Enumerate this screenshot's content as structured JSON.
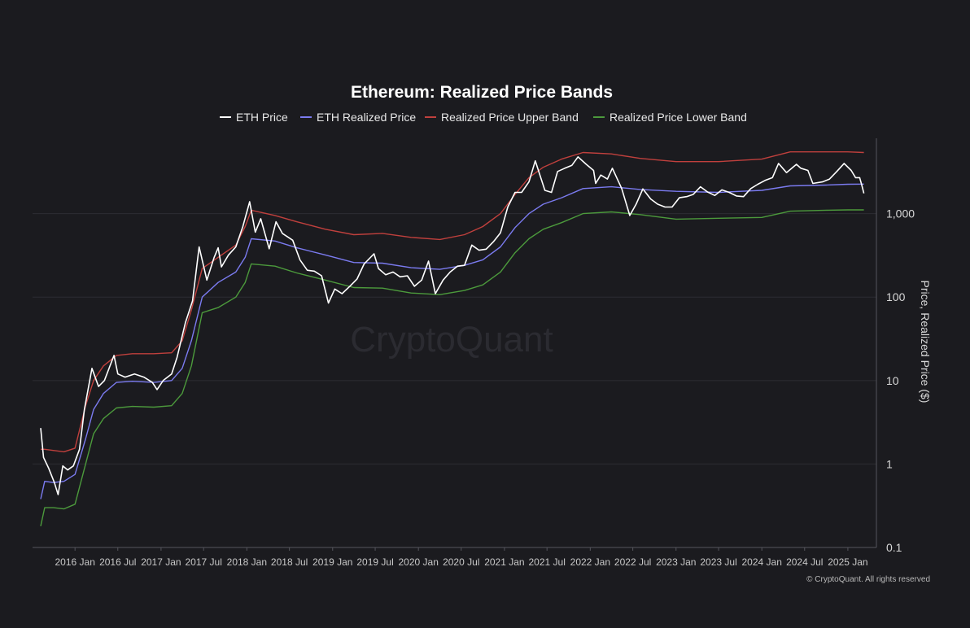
{
  "chart_data": {
    "type": "line",
    "title": "Ethereum: Realized Price Bands",
    "ylabel": "Price, Realized Price ($)",
    "yscale": "log",
    "ylim": [
      0.1,
      8000
    ],
    "xlim": [
      "2015-08-01",
      "2025-03-15"
    ],
    "y_ticks": [
      {
        "value": 0.1,
        "label": "0.1"
      },
      {
        "value": 1,
        "label": "1"
      },
      {
        "value": 10,
        "label": "10"
      },
      {
        "value": 100,
        "label": "100"
      },
      {
        "value": 1000,
        "label": "1,000"
      }
    ],
    "x_ticks": [
      {
        "date": "2016-01-01",
        "label": "2016 Jan"
      },
      {
        "date": "2016-07-01",
        "label": "2016 Jul"
      },
      {
        "date": "2017-01-01",
        "label": "2017 Jan"
      },
      {
        "date": "2017-07-01",
        "label": "2017 Jul"
      },
      {
        "date": "2018-01-01",
        "label": "2018 Jan"
      },
      {
        "date": "2018-07-01",
        "label": "2018 Jul"
      },
      {
        "date": "2019-01-01",
        "label": "2019 Jan"
      },
      {
        "date": "2019-07-01",
        "label": "2019 Jul"
      },
      {
        "date": "2020-01-01",
        "label": "2020 Jan"
      },
      {
        "date": "2020-07-01",
        "label": "2020 Jul"
      },
      {
        "date": "2021-01-01",
        "label": "2021 Jan"
      },
      {
        "date": "2021-07-01",
        "label": "2021 Jul"
      },
      {
        "date": "2022-01-01",
        "label": "2022 Jan"
      },
      {
        "date": "2022-07-01",
        "label": "2022 Jul"
      },
      {
        "date": "2023-01-01",
        "label": "2023 Jan"
      },
      {
        "date": "2023-07-01",
        "label": "2023 Jul"
      },
      {
        "date": "2024-01-01",
        "label": "2024 Jan"
      },
      {
        "date": "2024-07-01",
        "label": "2024 Jul"
      },
      {
        "date": "2025-01-01",
        "label": "2025 Jan"
      }
    ],
    "legend_position": "top-center",
    "grid": "horizontal",
    "series": [
      {
        "name": "ETH Price",
        "color": "#ffffff",
        "points": [
          [
            "2015-08-08",
            2.7
          ],
          [
            "2015-08-20",
            1.2
          ],
          [
            "2015-09-10",
            0.9
          ],
          [
            "2015-10-05",
            0.6
          ],
          [
            "2015-10-21",
            0.43
          ],
          [
            "2015-11-10",
            0.95
          ],
          [
            "2015-12-01",
            0.85
          ],
          [
            "2015-12-25",
            0.95
          ],
          [
            "2016-01-20",
            1.5
          ],
          [
            "2016-02-10",
            4.5
          ],
          [
            "2016-03-13",
            14
          ],
          [
            "2016-04-10",
            8.5
          ],
          [
            "2016-05-05",
            10
          ],
          [
            "2016-06-15",
            20
          ],
          [
            "2016-07-01",
            12
          ],
          [
            "2016-08-01",
            11
          ],
          [
            "2016-09-10",
            12
          ],
          [
            "2016-10-20",
            11
          ],
          [
            "2016-11-25",
            9.5
          ],
          [
            "2016-12-15",
            7.8
          ],
          [
            "2017-01-10",
            10
          ],
          [
            "2017-02-15",
            12
          ],
          [
            "2017-03-10",
            19
          ],
          [
            "2017-04-15",
            50
          ],
          [
            "2017-05-15",
            90
          ],
          [
            "2017-06-12",
            400
          ],
          [
            "2017-07-15",
            160
          ],
          [
            "2017-08-15",
            300
          ],
          [
            "2017-09-01",
            390
          ],
          [
            "2017-09-15",
            230
          ],
          [
            "2017-10-15",
            320
          ],
          [
            "2017-11-15",
            400
          ],
          [
            "2017-12-15",
            700
          ],
          [
            "2018-01-13",
            1390
          ],
          [
            "2018-02-06",
            600
          ],
          [
            "2018-03-01",
            870
          ],
          [
            "2018-04-06",
            380
          ],
          [
            "2018-05-05",
            800
          ],
          [
            "2018-06-01",
            580
          ],
          [
            "2018-07-15",
            480
          ],
          [
            "2018-08-15",
            280
          ],
          [
            "2018-09-15",
            210
          ],
          [
            "2018-10-15",
            205
          ],
          [
            "2018-11-15",
            180
          ],
          [
            "2018-12-14",
            85
          ],
          [
            "2019-01-10",
            125
          ],
          [
            "2019-02-10",
            110
          ],
          [
            "2019-03-15",
            135
          ],
          [
            "2019-04-15",
            165
          ],
          [
            "2019-05-15",
            250
          ],
          [
            "2019-06-26",
            330
          ],
          [
            "2019-07-15",
            220
          ],
          [
            "2019-08-15",
            185
          ],
          [
            "2019-09-15",
            200
          ],
          [
            "2019-10-15",
            175
          ],
          [
            "2019-11-15",
            180
          ],
          [
            "2019-12-15",
            135
          ],
          [
            "2020-01-15",
            160
          ],
          [
            "2020-02-13",
            270
          ],
          [
            "2020-03-13",
            110
          ],
          [
            "2020-04-15",
            160
          ],
          [
            "2020-05-15",
            200
          ],
          [
            "2020-06-15",
            235
          ],
          [
            "2020-07-15",
            240
          ],
          [
            "2020-08-15",
            420
          ],
          [
            "2020-09-15",
            365
          ],
          [
            "2020-10-15",
            375
          ],
          [
            "2020-11-15",
            460
          ],
          [
            "2020-12-15",
            590
          ],
          [
            "2021-01-15",
            1200
          ],
          [
            "2021-02-15",
            1800
          ],
          [
            "2021-03-15",
            1800
          ],
          [
            "2021-04-15",
            2400
          ],
          [
            "2021-05-12",
            4300
          ],
          [
            "2021-06-22",
            1900
          ],
          [
            "2021-07-20",
            1800
          ],
          [
            "2021-08-15",
            3200
          ],
          [
            "2021-09-15",
            3500
          ],
          [
            "2021-10-15",
            3800
          ],
          [
            "2021-11-10",
            4800
          ],
          [
            "2021-12-15",
            3900
          ],
          [
            "2022-01-15",
            3300
          ],
          [
            "2022-01-24",
            2300
          ],
          [
            "2022-02-15",
            2900
          ],
          [
            "2022-03-15",
            2600
          ],
          [
            "2022-04-05",
            3500
          ],
          [
            "2022-05-15",
            2000
          ],
          [
            "2022-06-18",
            950
          ],
          [
            "2022-07-15",
            1300
          ],
          [
            "2022-08-13",
            1980
          ],
          [
            "2022-09-15",
            1500
          ],
          [
            "2022-10-15",
            1300
          ],
          [
            "2022-11-15",
            1200
          ],
          [
            "2022-12-15",
            1200
          ],
          [
            "2023-01-15",
            1550
          ],
          [
            "2023-02-15",
            1600
          ],
          [
            "2023-03-15",
            1700
          ],
          [
            "2023-04-15",
            2100
          ],
          [
            "2023-05-15",
            1820
          ],
          [
            "2023-06-15",
            1650
          ],
          [
            "2023-07-15",
            1930
          ],
          [
            "2023-08-15",
            1800
          ],
          [
            "2023-09-15",
            1630
          ],
          [
            "2023-10-15",
            1600
          ],
          [
            "2023-11-15",
            2000
          ],
          [
            "2023-12-15",
            2250
          ],
          [
            "2024-01-15",
            2500
          ],
          [
            "2024-02-15",
            2700
          ],
          [
            "2024-03-12",
            4000
          ],
          [
            "2024-04-15",
            3100
          ],
          [
            "2024-05-27",
            3900
          ],
          [
            "2024-06-15",
            3500
          ],
          [
            "2024-07-15",
            3300
          ],
          [
            "2024-08-05",
            2300
          ],
          [
            "2024-09-15",
            2400
          ],
          [
            "2024-10-15",
            2600
          ],
          [
            "2024-11-15",
            3200
          ],
          [
            "2024-12-16",
            4000
          ],
          [
            "2025-01-15",
            3300
          ],
          [
            "2025-02-03",
            2700
          ],
          [
            "2025-02-20",
            2700
          ],
          [
            "2025-03-01",
            2200
          ],
          [
            "2025-03-10",
            1750
          ]
        ]
      },
      {
        "name": "ETH Realized Price",
        "color": "#7b7bf0",
        "points": [
          [
            "2015-08-08",
            0.38
          ],
          [
            "2015-08-25",
            0.62
          ],
          [
            "2015-10-01",
            0.6
          ],
          [
            "2015-11-15",
            0.62
          ],
          [
            "2016-01-01",
            0.75
          ],
          [
            "2016-02-15",
            2.0
          ],
          [
            "2016-03-20",
            4.5
          ],
          [
            "2016-05-01",
            7
          ],
          [
            "2016-06-25",
            9.5
          ],
          [
            "2016-09-01",
            9.8
          ],
          [
            "2016-12-01",
            9.5
          ],
          [
            "2017-02-15",
            10
          ],
          [
            "2017-04-01",
            14
          ],
          [
            "2017-05-10",
            30
          ],
          [
            "2017-06-25",
            100
          ],
          [
            "2017-09-01",
            150
          ],
          [
            "2017-11-15",
            200
          ],
          [
            "2017-12-25",
            300
          ],
          [
            "2018-01-20",
            500
          ],
          [
            "2018-05-01",
            470
          ],
          [
            "2018-08-01",
            390
          ],
          [
            "2018-12-01",
            320
          ],
          [
            "2019-04-01",
            260
          ],
          [
            "2019-08-01",
            255
          ],
          [
            "2019-12-01",
            225
          ],
          [
            "2020-04-01",
            215
          ],
          [
            "2020-07-15",
            240
          ],
          [
            "2020-10-01",
            280
          ],
          [
            "2020-12-15",
            400
          ],
          [
            "2021-02-15",
            680
          ],
          [
            "2021-04-15",
            1000
          ],
          [
            "2021-06-15",
            1300
          ],
          [
            "2021-09-01",
            1550
          ],
          [
            "2021-12-01",
            2000
          ],
          [
            "2022-04-01",
            2100
          ],
          [
            "2022-08-01",
            1950
          ],
          [
            "2023-01-01",
            1850
          ],
          [
            "2023-07-01",
            1800
          ],
          [
            "2024-01-01",
            1900
          ],
          [
            "2024-05-01",
            2150
          ],
          [
            "2024-10-01",
            2200
          ],
          [
            "2025-01-01",
            2250
          ],
          [
            "2025-03-10",
            2260
          ]
        ]
      },
      {
        "name": "Realized Price Upper Band",
        "color": "#c0403d",
        "points": [
          [
            "2015-08-08",
            1.5
          ],
          [
            "2015-08-25",
            1.5
          ],
          [
            "2015-11-15",
            1.4
          ],
          [
            "2016-01-01",
            1.55
          ],
          [
            "2016-02-15",
            5
          ],
          [
            "2016-03-20",
            10
          ],
          [
            "2016-05-01",
            15
          ],
          [
            "2016-06-25",
            20
          ],
          [
            "2016-09-01",
            21
          ],
          [
            "2016-12-01",
            21
          ],
          [
            "2017-02-15",
            21.5
          ],
          [
            "2017-04-01",
            30
          ],
          [
            "2017-05-10",
            70
          ],
          [
            "2017-06-25",
            220
          ],
          [
            "2017-09-01",
            300
          ],
          [
            "2017-11-15",
            420
          ],
          [
            "2017-12-25",
            700
          ],
          [
            "2018-01-20",
            1100
          ],
          [
            "2018-05-01",
            950
          ],
          [
            "2018-08-01",
            800
          ],
          [
            "2018-12-01",
            650
          ],
          [
            "2019-04-01",
            560
          ],
          [
            "2019-08-01",
            580
          ],
          [
            "2019-12-01",
            520
          ],
          [
            "2020-04-01",
            490
          ],
          [
            "2020-07-15",
            560
          ],
          [
            "2020-10-01",
            700
          ],
          [
            "2020-12-15",
            1000
          ],
          [
            "2021-02-15",
            1700
          ],
          [
            "2021-04-15",
            2700
          ],
          [
            "2021-06-15",
            3600
          ],
          [
            "2021-09-01",
            4500
          ],
          [
            "2021-12-01",
            5400
          ],
          [
            "2022-04-01",
            5200
          ],
          [
            "2022-08-01",
            4600
          ],
          [
            "2023-01-01",
            4200
          ],
          [
            "2023-07-01",
            4200
          ],
          [
            "2024-01-01",
            4500
          ],
          [
            "2024-05-01",
            5500
          ],
          [
            "2024-10-01",
            5500
          ],
          [
            "2025-01-01",
            5500
          ],
          [
            "2025-03-10",
            5400
          ]
        ]
      },
      {
        "name": "Realized Price Lower Band",
        "color": "#4c9a3c",
        "points": [
          [
            "2015-08-08",
            0.18
          ],
          [
            "2015-08-25",
            0.3
          ],
          [
            "2015-10-01",
            0.3
          ],
          [
            "2015-11-15",
            0.29
          ],
          [
            "2016-01-01",
            0.33
          ],
          [
            "2016-02-15",
            1.0
          ],
          [
            "2016-03-20",
            2.3
          ],
          [
            "2016-05-01",
            3.5
          ],
          [
            "2016-06-25",
            4.7
          ],
          [
            "2016-09-01",
            4.9
          ],
          [
            "2016-12-01",
            4.8
          ],
          [
            "2017-02-15",
            5
          ],
          [
            "2017-04-01",
            7
          ],
          [
            "2017-05-10",
            15
          ],
          [
            "2017-06-25",
            65
          ],
          [
            "2017-09-01",
            75
          ],
          [
            "2017-11-15",
            100
          ],
          [
            "2017-12-25",
            150
          ],
          [
            "2018-01-20",
            250
          ],
          [
            "2018-05-01",
            235
          ],
          [
            "2018-08-01",
            195
          ],
          [
            "2018-12-01",
            160
          ],
          [
            "2019-04-01",
            130
          ],
          [
            "2019-08-01",
            128
          ],
          [
            "2019-12-01",
            112
          ],
          [
            "2020-04-01",
            107
          ],
          [
            "2020-07-15",
            120
          ],
          [
            "2020-10-01",
            140
          ],
          [
            "2020-12-15",
            200
          ],
          [
            "2021-02-15",
            340
          ],
          [
            "2021-04-15",
            500
          ],
          [
            "2021-06-15",
            650
          ],
          [
            "2021-09-01",
            780
          ],
          [
            "2021-12-01",
            1000
          ],
          [
            "2022-04-01",
            1050
          ],
          [
            "2022-08-01",
            975
          ],
          [
            "2023-01-01",
            860
          ],
          [
            "2023-07-01",
            880
          ],
          [
            "2024-01-01",
            900
          ],
          [
            "2024-05-01",
            1070
          ],
          [
            "2024-10-01",
            1100
          ],
          [
            "2025-01-01",
            1110
          ],
          [
            "2025-03-10",
            1110
          ]
        ]
      }
    ]
  },
  "watermark": "CryptoQuant",
  "copyright": "© CryptoQuant. All rights reserved"
}
